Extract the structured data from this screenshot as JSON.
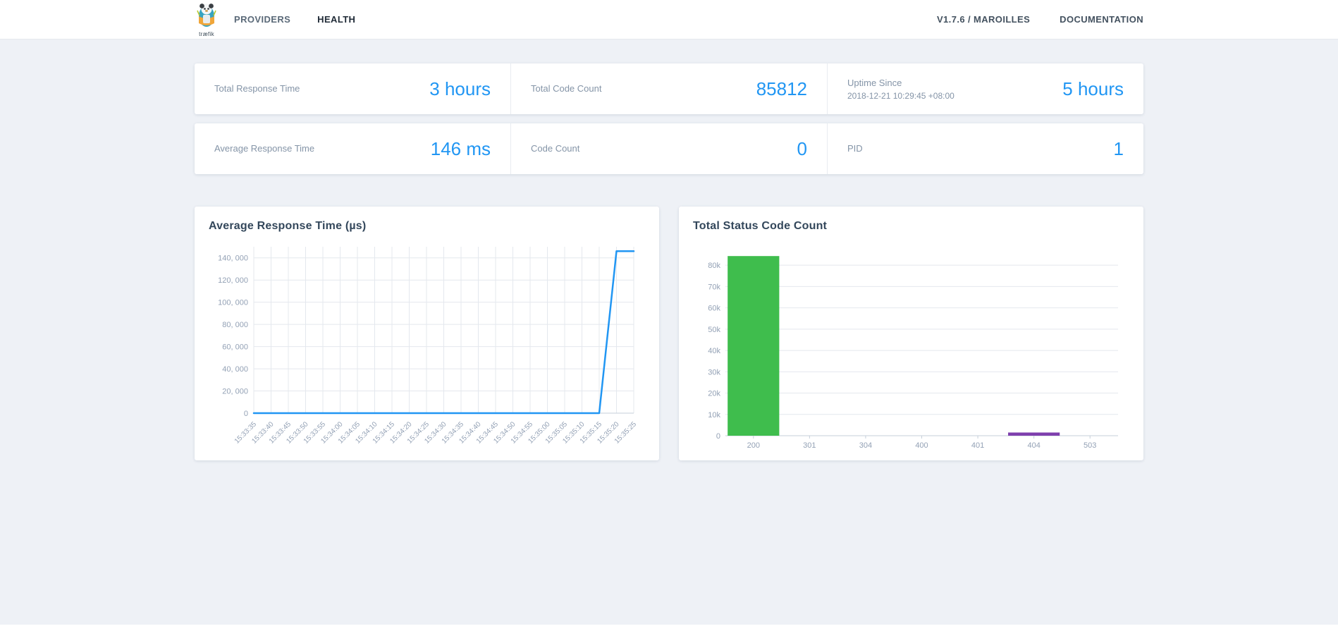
{
  "header": {
    "brand_caption": "træfik",
    "nav": [
      {
        "label": "PROVIDERS",
        "active": false
      },
      {
        "label": "HEALTH",
        "active": true
      }
    ],
    "links": {
      "version": "V1.7.6 / MAROILLES",
      "documentation": "DOCUMENTATION"
    }
  },
  "stats": {
    "row1": [
      {
        "label": "Total Response Time",
        "value": "3 hours"
      },
      {
        "label": "Total Code Count",
        "value": "85812"
      },
      {
        "label": "Uptime Since",
        "sublabel": "2018-12-21 10:29:45 +08:00",
        "value": "5 hours"
      }
    ],
    "row2": [
      {
        "label": "Average Response Time",
        "value": "146 ms"
      },
      {
        "label": "Code Count",
        "value": "0"
      },
      {
        "label": "PID",
        "value": "1"
      }
    ]
  },
  "colors": {
    "accent_blue": "#2196f3",
    "line_blue": "#2196f3",
    "bar_green": "#3fbd4d",
    "bar_purple": "#7e3fad",
    "grid": "#e4e8ee",
    "axis": "#c6cfda",
    "tick_text": "#93a1b5"
  },
  "chart_data": [
    {
      "type": "line",
      "title": "Average Response Time (µs)",
      "xlabel": "",
      "ylabel": "",
      "x": [
        "15:33:35",
        "15:33:40",
        "15:33:45",
        "15:33:50",
        "15:33:55",
        "15:34:00",
        "15:34:05",
        "15:34:10",
        "15:34:15",
        "15:34:20",
        "15:34:25",
        "15:34:30",
        "15:34:35",
        "15:34:40",
        "15:34:45",
        "15:34:50",
        "15:34:55",
        "15:35:00",
        "15:35:05",
        "15:35:10",
        "15:35:15",
        "15:35:20",
        "15:35:25"
      ],
      "values": [
        0,
        0,
        0,
        0,
        0,
        0,
        0,
        0,
        0,
        0,
        0,
        0,
        0,
        0,
        0,
        0,
        0,
        0,
        0,
        0,
        0,
        146000,
        146000
      ],
      "ylim": [
        0,
        150000
      ],
      "y_tick_values": [
        0,
        20000,
        40000,
        60000,
        80000,
        100000,
        120000,
        140000
      ],
      "y_tick_labels": [
        "0",
        "20, 000",
        "40, 000",
        "60, 000",
        "80, 000",
        "100, 000",
        "120, 000",
        "140, 000"
      ],
      "grid": "both",
      "legend": "none",
      "line_color": "#2196f3"
    },
    {
      "type": "bar",
      "title": "Total Status Code Count",
      "xlabel": "",
      "ylabel": "",
      "categories": [
        "200",
        "301",
        "304",
        "400",
        "401",
        "404",
        "503"
      ],
      "values": [
        84300,
        0,
        0,
        0,
        0,
        1500,
        0
      ],
      "bar_colors": [
        "#3fbd4d",
        "#3fbd4d",
        "#3fbd4d",
        "#3fbd4d",
        "#3fbd4d",
        "#7e3fad",
        "#3fbd4d"
      ],
      "ylim": [
        0,
        88000
      ],
      "y_tick_values": [
        0,
        10000,
        20000,
        30000,
        40000,
        50000,
        60000,
        70000,
        80000
      ],
      "y_tick_labels": [
        "0",
        "10k",
        "20k",
        "30k",
        "40k",
        "50k",
        "60k",
        "70k",
        "80k"
      ],
      "grid": "horizontal",
      "legend": "none"
    }
  ]
}
